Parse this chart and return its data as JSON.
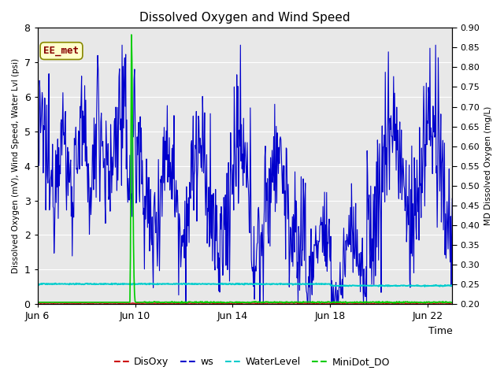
{
  "title": "Dissolved Oxygen and Wind Speed",
  "xlabel": "Time",
  "ylabel_left": "Dissolved Oxygen (mV), Wind Speed, Water Lvl (psi)",
  "ylabel_right": "MD Dissolved Oxygen (mg/L)",
  "ylim_left": [
    0.0,
    8.0
  ],
  "ylim_right": [
    0.2,
    0.9
  ],
  "yticks_left": [
    0.0,
    1.0,
    2.0,
    3.0,
    4.0,
    5.0,
    6.0,
    7.0,
    8.0
  ],
  "yticks_right": [
    0.2,
    0.25,
    0.3,
    0.35,
    0.4,
    0.45,
    0.5,
    0.55,
    0.6,
    0.65,
    0.7,
    0.75,
    0.8,
    0.85,
    0.9
  ],
  "xtick_positions": [
    0,
    4,
    8,
    12,
    16
  ],
  "xtick_labels": [
    "Jun 6",
    "Jun 10",
    "Jun 14",
    "Jun 18",
    "Jun 22"
  ],
  "xlim": [
    0,
    17
  ],
  "annotation_text": "EE_met",
  "annotation_fgcolor": "#880000",
  "annotation_bgcolor": "#ffffcc",
  "annotation_edgecolor": "#888800",
  "bg_color": "#e8e8e8",
  "ws_color": "#0000cc",
  "disoxy_color": "#cc0000",
  "waterlevel_color": "#00cccc",
  "minidot_color": "#00cc00",
  "grid_color": "#ffffff",
  "legend_colors": [
    "#cc0000",
    "#0000cc",
    "#00cccc",
    "#00cc00"
  ],
  "legend_labels": [
    "DisOxy",
    "ws",
    "WaterLevel",
    "MiniDot_DO"
  ],
  "n_points": 800,
  "waterlevel_value": 0.58,
  "disoxy_value": 0.02,
  "seed": 12345
}
